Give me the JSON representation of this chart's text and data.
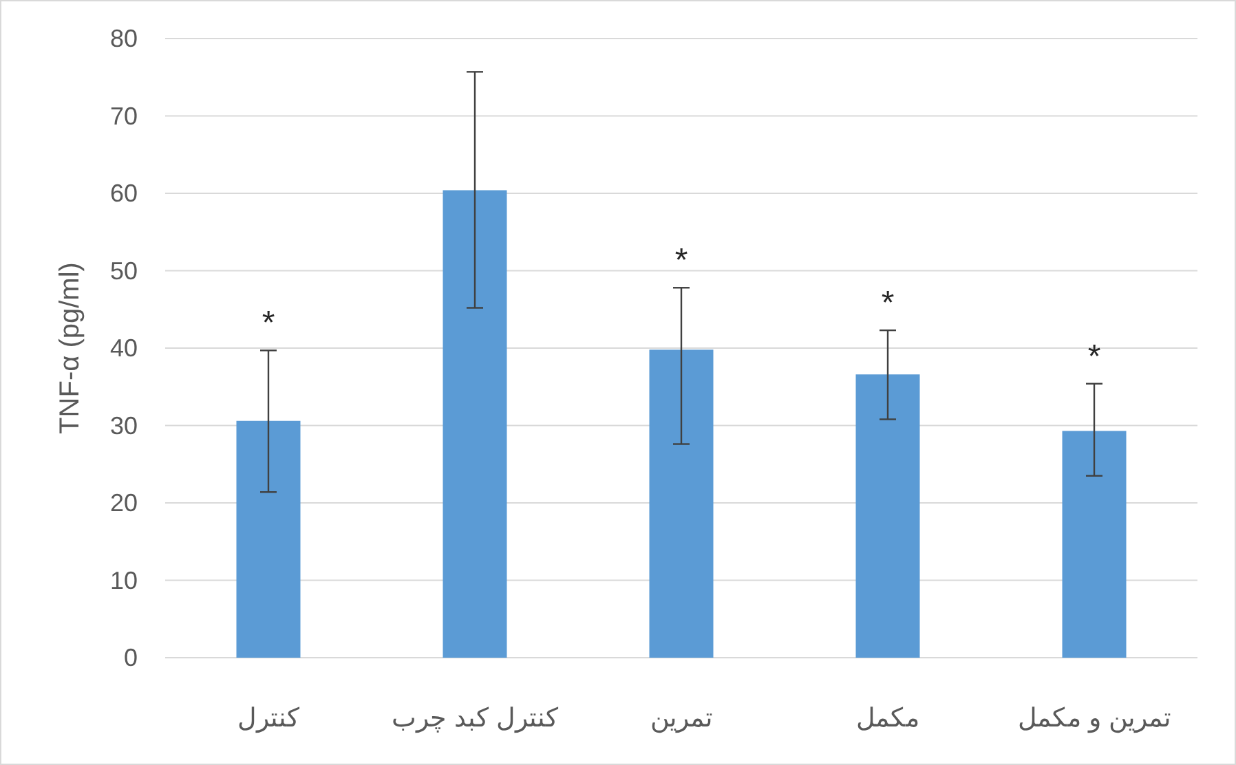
{
  "chart_data": {
    "type": "bar",
    "ylabel": "TNF-α (pg/ml)",
    "categories": [
      "کنترل",
      "کنترل کبد چرب",
      "تمرین",
      "مکمل",
      "تمرین و مکمل"
    ],
    "values": [
      30.6,
      60.4,
      39.8,
      36.6,
      29.3
    ],
    "errors": [
      [
        21.4,
        39.7
      ],
      [
        45.2,
        75.7
      ],
      [
        27.6,
        47.8
      ],
      [
        30.8,
        42.3
      ],
      [
        23.5,
        35.4
      ]
    ],
    "color": "#5b9bd5",
    "ylim": [
      0,
      80
    ],
    "yticks": [
      0,
      10,
      20,
      30,
      40,
      50,
      60,
      70,
      80
    ],
    "grid": "y",
    "value_labels": [
      "*",
      null,
      "*",
      "*",
      "*"
    ]
  }
}
